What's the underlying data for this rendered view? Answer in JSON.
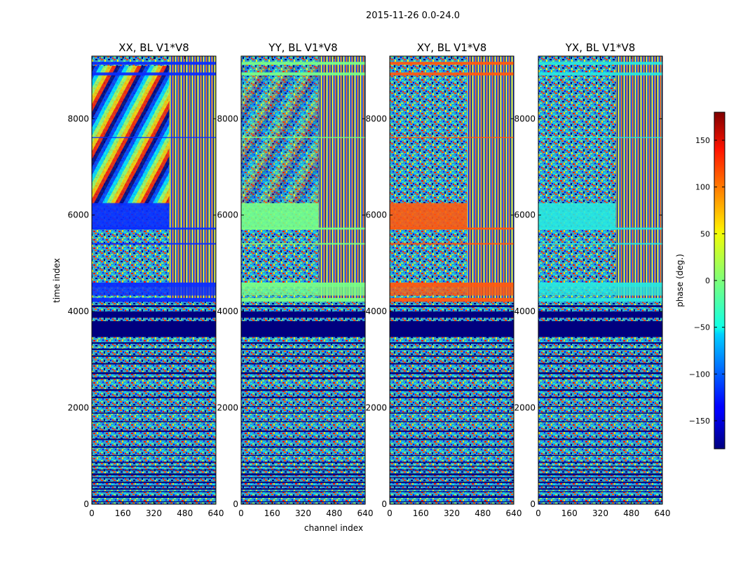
{
  "chart_data": {
    "type": "heatmap",
    "suptitle": "2015-11-26 0.0-24.0",
    "xlabel": "channel index",
    "ylabel": "time index",
    "xlim": [
      0,
      640
    ],
    "ylim": [
      0,
      9300
    ],
    "xticks": [
      0,
      160,
      320,
      480,
      640
    ],
    "yticks": [
      0,
      2000,
      4000,
      6000,
      8000
    ],
    "panels": [
      {
        "title": "XX, BL V1*V8",
        "base": "blue",
        "fringes": "strong diagonal"
      },
      {
        "title": "YY, BL V1*V8",
        "base": "green",
        "fringes": "weak"
      },
      {
        "title": "XY, BL V1*V8",
        "base": "red-orange",
        "fringes": "noise"
      },
      {
        "title": "YX, BL V1*V8",
        "base": "cyan",
        "fringes": "noise"
      }
    ],
    "colorbar": {
      "label": "phase (deg.)",
      "range": [
        -180,
        180
      ],
      "ticks": [
        -150,
        -100,
        -50,
        0,
        50,
        100,
        150
      ],
      "tick_labels": [
        "−150",
        "−100",
        "−50",
        "0",
        "50",
        "100",
        "150"
      ],
      "colormap": "jet"
    }
  }
}
